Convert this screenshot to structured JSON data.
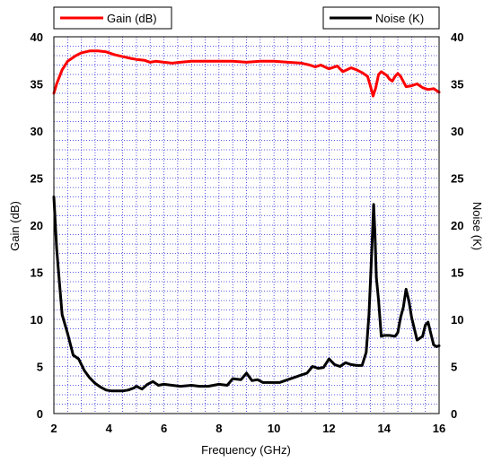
{
  "chart_data": {
    "type": "line",
    "xlabel": "Frequency (GHz)",
    "ylabel": "Gain (dB)",
    "y2label": "Noise (K)",
    "xlim": [
      2,
      16
    ],
    "ylim": [
      0,
      40
    ],
    "y2lim": [
      0,
      40
    ],
    "x_ticks": [
      "2",
      "4",
      "6",
      "8",
      "10",
      "12",
      "14",
      "16"
    ],
    "y_ticks": [
      "0",
      "5",
      "10",
      "15",
      "20",
      "25",
      "30",
      "35",
      "40"
    ],
    "y2_ticks": [
      "0",
      "5",
      "10",
      "15",
      "20",
      "25",
      "30",
      "35",
      "40"
    ],
    "grid": true,
    "legend": [
      {
        "position": "top-left",
        "series": 0
      },
      {
        "position": "top-right",
        "series": 1
      }
    ],
    "series": [
      {
        "name": "Gain (dB)",
        "color": "#ff0000",
        "axis": "left",
        "x": [
          2.0,
          2.1,
          2.3,
          2.5,
          2.8,
          3.0,
          3.3,
          3.6,
          3.9,
          4.2,
          4.5,
          4.8,
          5.0,
          5.3,
          5.5,
          5.7,
          6.0,
          6.3,
          6.6,
          7.0,
          7.5,
          8.0,
          8.5,
          9.0,
          9.5,
          10.0,
          10.5,
          11.0,
          11.3,
          11.5,
          11.7,
          12.0,
          12.3,
          12.5,
          12.8,
          13.0,
          13.2,
          13.4,
          13.5,
          13.6,
          13.7,
          13.8,
          13.9,
          14.1,
          14.2,
          14.3,
          14.4,
          14.5,
          14.6,
          14.8,
          15.0,
          15.2,
          15.4,
          15.6,
          15.8,
          16.0
        ],
        "y": [
          34.0,
          35.0,
          36.5,
          37.4,
          38.0,
          38.3,
          38.5,
          38.5,
          38.4,
          38.1,
          37.9,
          37.7,
          37.6,
          37.5,
          37.3,
          37.4,
          37.3,
          37.2,
          37.3,
          37.4,
          37.4,
          37.4,
          37.4,
          37.3,
          37.4,
          37.4,
          37.3,
          37.2,
          37.0,
          36.8,
          37.0,
          36.6,
          36.9,
          36.3,
          36.7,
          36.5,
          36.2,
          35.8,
          34.8,
          33.7,
          34.6,
          36.0,
          36.3,
          35.9,
          35.5,
          35.3,
          35.8,
          36.1,
          35.8,
          34.7,
          34.8,
          35.0,
          34.6,
          34.4,
          34.5,
          34.1
        ]
      },
      {
        "name": "Noise (K)",
        "color": "#000000",
        "axis": "right",
        "x": [
          2.0,
          2.1,
          2.2,
          2.3,
          2.5,
          2.7,
          2.9,
          3.1,
          3.3,
          3.5,
          3.7,
          3.9,
          4.1,
          4.3,
          4.5,
          4.7,
          4.9,
          5.0,
          5.2,
          5.4,
          5.6,
          5.8,
          6.0,
          6.3,
          6.6,
          7.0,
          7.3,
          7.6,
          8.0,
          8.3,
          8.5,
          8.8,
          9.0,
          9.2,
          9.4,
          9.6,
          9.9,
          10.2,
          10.5,
          10.8,
          11.0,
          11.2,
          11.4,
          11.6,
          11.8,
          12.0,
          12.2,
          12.4,
          12.6,
          12.8,
          13.0,
          13.2,
          13.35,
          13.45,
          13.55,
          13.62,
          13.67,
          13.72,
          13.8,
          13.9,
          14.0,
          14.2,
          14.4,
          14.5,
          14.6,
          14.7,
          14.8,
          14.9,
          15.0,
          15.2,
          15.4,
          15.5,
          15.6,
          15.7,
          15.8,
          15.9,
          16.0
        ],
        "y": [
          23.0,
          17.5,
          14.0,
          10.5,
          8.5,
          6.2,
          5.8,
          4.6,
          3.8,
          3.2,
          2.8,
          2.5,
          2.4,
          2.4,
          2.4,
          2.5,
          2.7,
          2.9,
          2.6,
          3.1,
          3.4,
          3.0,
          3.1,
          3.0,
          2.9,
          3.0,
          2.9,
          2.9,
          3.1,
          3.0,
          3.7,
          3.6,
          4.3,
          3.5,
          3.6,
          3.3,
          3.3,
          3.3,
          3.6,
          3.9,
          4.1,
          4.3,
          5.0,
          4.8,
          4.9,
          5.8,
          5.2,
          5.0,
          5.4,
          5.2,
          5.1,
          5.1,
          6.5,
          10.5,
          17.0,
          22.2,
          19.0,
          14.5,
          12.0,
          8.2,
          8.3,
          8.3,
          8.2,
          8.6,
          10.2,
          11.3,
          13.2,
          12.0,
          10.2,
          7.8,
          8.2,
          9.4,
          9.7,
          8.5,
          7.3,
          7.1,
          7.2
        ]
      }
    ]
  }
}
